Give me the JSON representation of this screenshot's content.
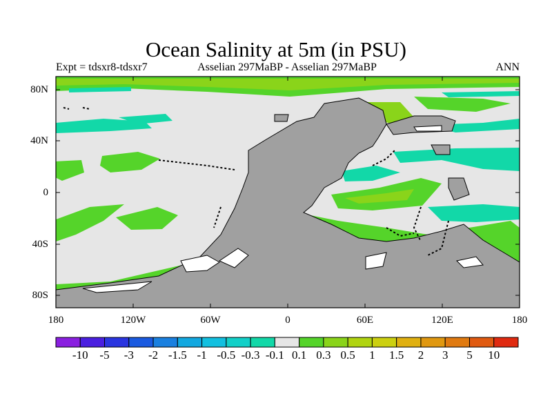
{
  "title": "Ocean Salinity at 5m (in PSU)",
  "subtitle_left": "Expt = tdsxr8-tdsxr7",
  "subtitle_center": "Asselian 297MaBP - Asselian 297MaBP",
  "subtitle_right": "ANN",
  "lat_labels": [
    "80N",
    "40N",
    "0",
    "40S",
    "80S"
  ],
  "lon_labels": [
    "180",
    "120W",
    "60W",
    "0",
    "60E",
    "120E",
    "180"
  ],
  "colorbar": {
    "labels": [
      "-10",
      "-5",
      "-3",
      "-2",
      "-1.5",
      "-1",
      "-0.5",
      "-0.3",
      "-0.1",
      "0.1",
      "0.3",
      "0.5",
      "1",
      "1.5",
      "2",
      "3",
      "5",
      "10"
    ],
    "colors": [
      "#8a1fe0",
      "#4a1fe0",
      "#2a35e0",
      "#1a5ae0",
      "#1a80e0",
      "#12a8e0",
      "#12c0e0",
      "#12d0c8",
      "#12d8a8",
      "#e6e6e6",
      "#55d42a",
      "#8ad41a",
      "#b0d410",
      "#ccd010",
      "#e0b010",
      "#e09810",
      "#e07a10",
      "#e05a10",
      "#e02a10"
    ]
  },
  "colors": {
    "land": "#a0a0a0",
    "ocean_neutral": "#e6e6e6",
    "salty_low": "#55d42a",
    "salty_mid": "#8ad41a",
    "salty_high": "#b0d410",
    "fresh": "#12d8a8",
    "fresh_mid": "#12d0c8",
    "coast": "#000000"
  }
}
